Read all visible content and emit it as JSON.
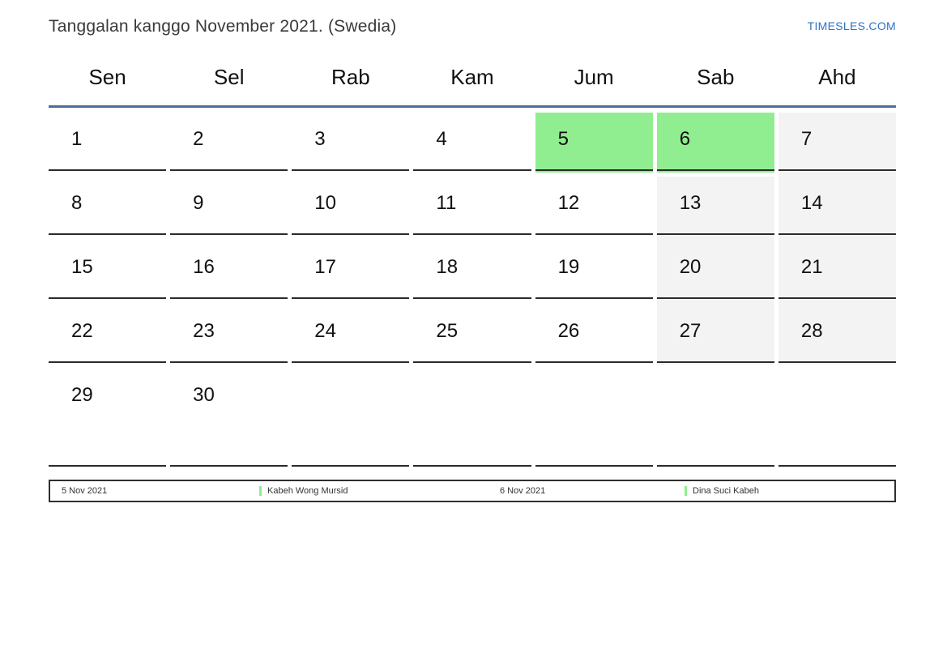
{
  "page": {
    "title": "Tanggalan kanggo November 2021. (Swedia)",
    "link": "TIMESLES.COM"
  },
  "weekdays": [
    "Sen",
    "Sel",
    "Rab",
    "Kam",
    "Jum",
    "Sab",
    "Ahd"
  ],
  "weeks": [
    [
      {
        "day": "1",
        "type": "normal"
      },
      {
        "day": "2",
        "type": "normal"
      },
      {
        "day": "3",
        "type": "normal"
      },
      {
        "day": "4",
        "type": "normal"
      },
      {
        "day": "5",
        "type": "holiday"
      },
      {
        "day": "6",
        "type": "holiday"
      },
      {
        "day": "7",
        "type": "weekend"
      }
    ],
    [
      {
        "day": "8",
        "type": "normal"
      },
      {
        "day": "9",
        "type": "normal"
      },
      {
        "day": "10",
        "type": "normal"
      },
      {
        "day": "11",
        "type": "normal"
      },
      {
        "day": "12",
        "type": "normal"
      },
      {
        "day": "13",
        "type": "weekend"
      },
      {
        "day": "14",
        "type": "weekend"
      }
    ],
    [
      {
        "day": "15",
        "type": "normal"
      },
      {
        "day": "16",
        "type": "normal"
      },
      {
        "day": "17",
        "type": "normal"
      },
      {
        "day": "18",
        "type": "normal"
      },
      {
        "day": "19",
        "type": "normal"
      },
      {
        "day": "20",
        "type": "weekend"
      },
      {
        "day": "21",
        "type": "weekend"
      }
    ],
    [
      {
        "day": "22",
        "type": "normal"
      },
      {
        "day": "23",
        "type": "normal"
      },
      {
        "day": "24",
        "type": "normal"
      },
      {
        "day": "25",
        "type": "normal"
      },
      {
        "day": "26",
        "type": "normal"
      },
      {
        "day": "27",
        "type": "weekend"
      },
      {
        "day": "28",
        "type": "weekend"
      }
    ],
    [
      {
        "day": "29",
        "type": "normal"
      },
      {
        "day": "30",
        "type": "normal"
      },
      {
        "day": "",
        "type": "empty"
      },
      {
        "day": "",
        "type": "empty"
      },
      {
        "day": "",
        "type": "empty"
      },
      {
        "day": "",
        "type": "empty"
      },
      {
        "day": "",
        "type": "empty"
      }
    ]
  ],
  "legend": [
    {
      "text": "5 Nov 2021",
      "marker": false
    },
    {
      "text": "Kabeh Wong Mursid",
      "marker": true
    },
    {
      "text": "6 Nov 2021",
      "marker": false
    },
    {
      "text": "Dina Suci Kabeh",
      "marker": true
    }
  ],
  "colors": {
    "holiday_green": "#90ee90",
    "weekend_gray": "#f3f3f3",
    "header_line_blue": "#4d6e96",
    "link_blue": "#2f72c4"
  }
}
